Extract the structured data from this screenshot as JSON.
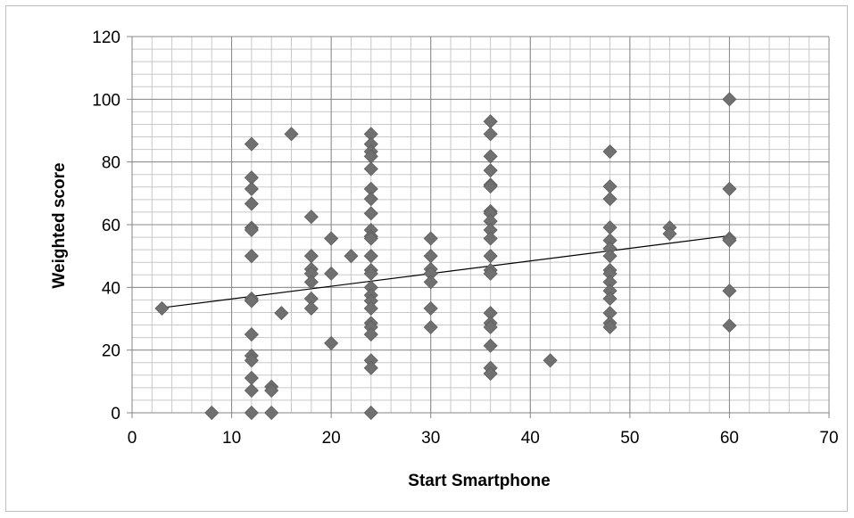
{
  "chart_data": {
    "type": "scatter",
    "title": "",
    "xlabel": "Start Smartphone",
    "ylabel": "Weighted score",
    "xlim": [
      0,
      70
    ],
    "ylim": [
      0,
      120
    ],
    "x_ticks": [
      0,
      10,
      20,
      30,
      40,
      50,
      60,
      70
    ],
    "y_ticks": [
      0,
      20,
      40,
      60,
      80,
      100,
      120
    ],
    "x_minor_step": 2,
    "y_minor_step": 4,
    "grid": true,
    "legend": "none",
    "marker": "diamond",
    "marker_color": "#707070",
    "trendline": {
      "type": "linear",
      "x": [
        3,
        60
      ],
      "y": [
        33.5,
        56.5
      ],
      "color": "#000000"
    },
    "points": [
      [
        3,
        33.3
      ],
      [
        8,
        0
      ],
      [
        12,
        85.7
      ],
      [
        12,
        75
      ],
      [
        12,
        71.4
      ],
      [
        12,
        66.7
      ],
      [
        12,
        59
      ],
      [
        12,
        58.3
      ],
      [
        12,
        50
      ],
      [
        12,
        36.4
      ],
      [
        12,
        35.7
      ],
      [
        12,
        25
      ],
      [
        12,
        18.2
      ],
      [
        12,
        16.7
      ],
      [
        12,
        11.1
      ],
      [
        12,
        7.1
      ],
      [
        12,
        0
      ],
      [
        14,
        8.3
      ],
      [
        14,
        7.1
      ],
      [
        14,
        0
      ],
      [
        15,
        31.8
      ],
      [
        16,
        88.9
      ],
      [
        18,
        62.5
      ],
      [
        18,
        50
      ],
      [
        18,
        45.8
      ],
      [
        18,
        44.4
      ],
      [
        18,
        41.7
      ],
      [
        18,
        36.4
      ],
      [
        18,
        33.3
      ],
      [
        20,
        55.6
      ],
      [
        20,
        44.4
      ],
      [
        20,
        22.2
      ],
      [
        22,
        50
      ],
      [
        24,
        88.9
      ],
      [
        24,
        85.7
      ],
      [
        24,
        83.3
      ],
      [
        24,
        81.8
      ],
      [
        24,
        77.8
      ],
      [
        24,
        71.4
      ],
      [
        24,
        68.2
      ],
      [
        24,
        63.6
      ],
      [
        24,
        58.3
      ],
      [
        24,
        56.3
      ],
      [
        24,
        55.6
      ],
      [
        24,
        50
      ],
      [
        24,
        45.5
      ],
      [
        24,
        44.4
      ],
      [
        24,
        40
      ],
      [
        24,
        37.5
      ],
      [
        24,
        35.7
      ],
      [
        24,
        33.3
      ],
      [
        24,
        28.6
      ],
      [
        24,
        27.3
      ],
      [
        24,
        25
      ],
      [
        24,
        16.7
      ],
      [
        24,
        14.3
      ],
      [
        24,
        0
      ],
      [
        30,
        55.6
      ],
      [
        30,
        50
      ],
      [
        30,
        45.8
      ],
      [
        30,
        44.4
      ],
      [
        30,
        41.7
      ],
      [
        30,
        33.3
      ],
      [
        30,
        27.3
      ],
      [
        36,
        92.9
      ],
      [
        36,
        88.9
      ],
      [
        36,
        81.8
      ],
      [
        36,
        77.3
      ],
      [
        36,
        72.7
      ],
      [
        36,
        72.2
      ],
      [
        36,
        64.3
      ],
      [
        36,
        63.6
      ],
      [
        36,
        61.1
      ],
      [
        36,
        58.3
      ],
      [
        36,
        55.6
      ],
      [
        36,
        50
      ],
      [
        36,
        45.5
      ],
      [
        36,
        44.4
      ],
      [
        36,
        31.8
      ],
      [
        36,
        28.6
      ],
      [
        36,
        27.3
      ],
      [
        36,
        21.4
      ],
      [
        36,
        14.3
      ],
      [
        36,
        12.5
      ],
      [
        42,
        16.7
      ],
      [
        48,
        83.3
      ],
      [
        48,
        72.2
      ],
      [
        48,
        68.2
      ],
      [
        48,
        59.1
      ],
      [
        48,
        55
      ],
      [
        48,
        52.4
      ],
      [
        48,
        50
      ],
      [
        48,
        45.5
      ],
      [
        48,
        44.4
      ],
      [
        48,
        41.7
      ],
      [
        48,
        38.9
      ],
      [
        48,
        36.4
      ],
      [
        48,
        31.8
      ],
      [
        48,
        28.6
      ],
      [
        48,
        27.3
      ],
      [
        54,
        59.1
      ],
      [
        54,
        57.1
      ],
      [
        60,
        100
      ],
      [
        60,
        71.4
      ],
      [
        60,
        55.6
      ],
      [
        60,
        55
      ],
      [
        60,
        38.9
      ],
      [
        60,
        27.8
      ]
    ]
  }
}
